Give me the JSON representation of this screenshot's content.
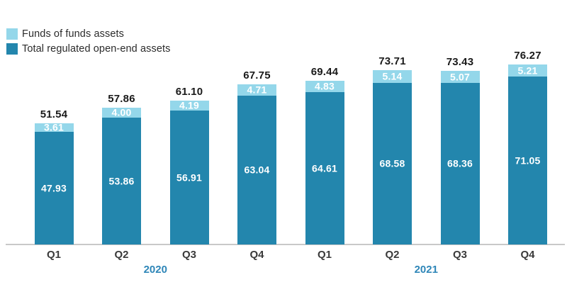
{
  "legend": {
    "items": [
      {
        "label": "Funds of funds assets",
        "color": "#94d7ea"
      },
      {
        "label": "Total regulated open-end assets",
        "color": "#2386ad"
      }
    ]
  },
  "chart_data": {
    "type": "bar",
    "stacked": true,
    "title": "",
    "xlabel": "",
    "ylabel": "",
    "categories": [
      "Q1",
      "Q2",
      "Q3",
      "Q4",
      "Q1",
      "Q2",
      "Q3",
      "Q4"
    ],
    "groups": [
      {
        "label": "2020",
        "category_indices": [
          0,
          1,
          2,
          3
        ]
      },
      {
        "label": "2021",
        "category_indices": [
          4,
          5,
          6,
          7
        ]
      }
    ],
    "series": [
      {
        "name": "Total regulated open-end assets",
        "color": "#2386ad",
        "values": [
          47.93,
          53.86,
          56.91,
          63.04,
          64.61,
          68.58,
          68.36,
          71.05
        ]
      },
      {
        "name": "Funds of funds assets",
        "color": "#94d7ea",
        "values": [
          3.61,
          4.0,
          4.19,
          4.71,
          4.83,
          5.14,
          5.07,
          5.21
        ]
      }
    ],
    "totals": [
      51.54,
      57.86,
      61.1,
      67.75,
      69.44,
      73.71,
      73.43,
      76.27
    ],
    "value_label_decimals": 2,
    "legend_position": "top-left",
    "grid": false,
    "ylim": [
      0,
      80
    ]
  },
  "colors": {
    "dark_blue": "#2386ad",
    "light_blue": "#94d7ea",
    "year_label_blue": "#2e86b8",
    "axis_line_gray": "#c9c9c9",
    "total_label_black": "#1a1a1a",
    "category_label_gray": "#3a3a3a",
    "background": "#ffffff"
  }
}
